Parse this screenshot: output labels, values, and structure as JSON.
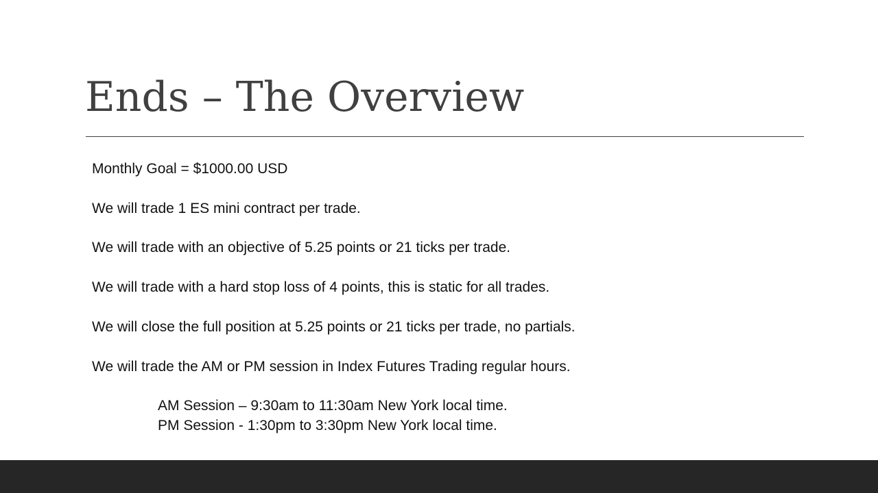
{
  "slide": {
    "title": "Ends – The Overview",
    "lines": [
      "Monthly Goal = $1000.00 USD",
      "We will trade 1 ES mini contract per trade.",
      "We will trade with an objective of 5.25 points or 21 ticks per trade.",
      "We will trade with a hard stop loss of 4 points, this is static for all trades.",
      "We will close the full position at 5.25 points or 21 ticks per trade, no partials.",
      "We will trade the AM or PM session in Index Futures Trading regular hours."
    ],
    "sessions": [
      "AM Session – 9:30am to 11:30am New York local time.",
      "PM Session -  1:30pm to 3:30pm New York local time."
    ]
  },
  "colors": {
    "title": "#404040",
    "body": "#111111",
    "footer": "#262626"
  }
}
